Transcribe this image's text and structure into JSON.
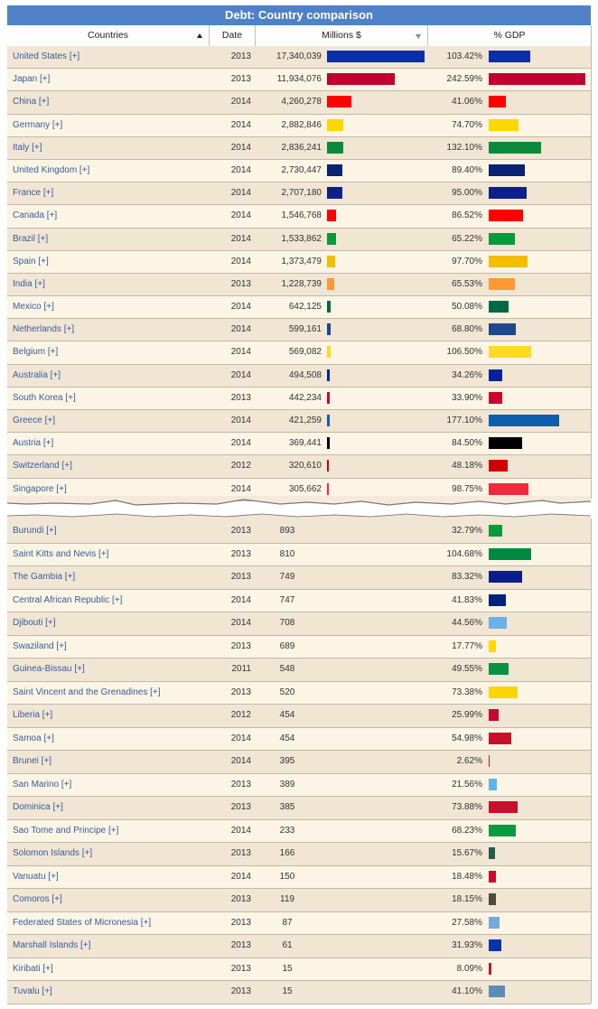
{
  "title": "Debt: Country comparison",
  "columns": {
    "countries": "Countries",
    "date": "Date",
    "millions": "Millions $",
    "gdp": "% GDP"
  },
  "top_rows": [
    {
      "name": "United States [+]",
      "date": "2013",
      "millions": "17,340,039",
      "gdp": "103.42%",
      "mil_w": 108,
      "gdp_w": 46,
      "color": "#0a2fa8"
    },
    {
      "name": "Japan [+]",
      "date": "2013",
      "millions": "11,934,076",
      "gdp": "242.59%",
      "mil_w": 75,
      "gdp_w": 107,
      "color": "#c0002f"
    },
    {
      "name": "China [+]",
      "date": "2014",
      "millions": "4,260,278",
      "gdp": "41.06%",
      "mil_w": 27,
      "gdp_w": 19,
      "color": "#ff0000"
    },
    {
      "name": "Germany [+]",
      "date": "2014",
      "millions": "2,882,846",
      "gdp": "74.70%",
      "mil_w": 18,
      "gdp_w": 33,
      "color": "#ffd700"
    },
    {
      "name": "Italy [+]",
      "date": "2014",
      "millions": "2,836,241",
      "gdp": "132.10%",
      "mil_w": 18,
      "gdp_w": 58,
      "color": "#0b8a3c"
    },
    {
      "name": "United Kingdom [+]",
      "date": "2014",
      "millions": "2,730,447",
      "gdp": "89.40%",
      "mil_w": 17,
      "gdp_w": 40,
      "color": "#0a2273"
    },
    {
      "name": "France [+]",
      "date": "2014",
      "millions": "2,707,180",
      "gdp": "95.00%",
      "mil_w": 17,
      "gdp_w": 42,
      "color": "#0d1f8c"
    },
    {
      "name": "Canada [+]",
      "date": "2014",
      "millions": "1,546,768",
      "gdp": "86.52%",
      "mil_w": 10,
      "gdp_w": 38,
      "color": "#ff0000"
    },
    {
      "name": "Brazil [+]",
      "date": "2014",
      "millions": "1,533,862",
      "gdp": "65.22%",
      "mil_w": 10,
      "gdp_w": 29,
      "color": "#089a3b"
    },
    {
      "name": "Spain [+]",
      "date": "2014",
      "millions": "1,373,479",
      "gdp": "97.70%",
      "mil_w": 9,
      "gdp_w": 43,
      "color": "#f4bd00"
    },
    {
      "name": "India [+]",
      "date": "2013",
      "millions": "1,228,739",
      "gdp": "65.53%",
      "mil_w": 8,
      "gdp_w": 29,
      "color": "#ff9933"
    },
    {
      "name": "Mexico [+]",
      "date": "2014",
      "millions": "642,125",
      "gdp": "50.08%",
      "mil_w": 4,
      "gdp_w": 22,
      "color": "#006847"
    },
    {
      "name": "Netherlands [+]",
      "date": "2014",
      "millions": "599,161",
      "gdp": "68.80%",
      "mil_w": 4,
      "gdp_w": 30,
      "color": "#21468b"
    },
    {
      "name": "Belgium [+]",
      "date": "2014",
      "millions": "569,082",
      "gdp": "106.50%",
      "mil_w": 4,
      "gdp_w": 47,
      "color": "#fdda24"
    },
    {
      "name": "Australia [+]",
      "date": "2014",
      "millions": "494,508",
      "gdp": "34.26%",
      "mil_w": 3,
      "gdp_w": 15,
      "color": "#00239c"
    },
    {
      "name": "South Korea [+]",
      "date": "2013",
      "millions": "442,234",
      "gdp": "33.90%",
      "mil_w": 3,
      "gdp_w": 15,
      "color": "#cd0031"
    },
    {
      "name": "Greece [+]",
      "date": "2014",
      "millions": "421,259",
      "gdp": "177.10%",
      "mil_w": 3,
      "gdp_w": 78,
      "color": "#0d5eaf"
    },
    {
      "name": "Austria [+]",
      "date": "2014",
      "millions": "369,441",
      "gdp": "84.50%",
      "mil_w": 3,
      "gdp_w": 37,
      "color": "#000000"
    },
    {
      "name": "Switzerland [+]",
      "date": "2012",
      "millions": "320,610",
      "gdp": "48.18%",
      "mil_w": 2,
      "gdp_w": 21,
      "color": "#d00000"
    },
    {
      "name": "Singapore [+]",
      "date": "2014",
      "millions": "305,662",
      "gdp": "98.75%",
      "mil_w": 2,
      "gdp_w": 44,
      "color": "#ef2b3b"
    }
  ],
  "bottom_rows": [
    {
      "name": "Burundi [+]",
      "date": "2013",
      "millions": "893",
      "gdp": "32.79%",
      "gdp_w": 15,
      "color": "#089a3b"
    },
    {
      "name": "Saint Kitts and Nevis [+]",
      "date": "2013",
      "millions": "810",
      "gdp": "104.68%",
      "gdp_w": 47,
      "color": "#008a40"
    },
    {
      "name": "The Gambia [+]",
      "date": "2013",
      "millions": "749",
      "gdp": "83.32%",
      "gdp_w": 37,
      "color": "#0b1c8c"
    },
    {
      "name": "Central African Republic [+]",
      "date": "2014",
      "millions": "747",
      "gdp": "41.83%",
      "gdp_w": 19,
      "color": "#002379"
    },
    {
      "name": "Djibouti [+]",
      "date": "2014",
      "millions": "708",
      "gdp": "44.56%",
      "gdp_w": 20,
      "color": "#6ab2e7"
    },
    {
      "name": "Swaziland [+]",
      "date": "2013",
      "millions": "689",
      "gdp": "17.77%",
      "gdp_w": 8,
      "color": "#ffd900"
    },
    {
      "name": "Guinea-Bissau [+]",
      "date": "2011",
      "millions": "548",
      "gdp": "49.55%",
      "gdp_w": 22,
      "color": "#079140"
    },
    {
      "name": "Saint Vincent and the Grenadines [+]",
      "date": "2013",
      "millions": "520",
      "gdp": "73.38%",
      "gdp_w": 32,
      "color": "#fcd400"
    },
    {
      "name": "Liberia [+]",
      "date": "2012",
      "millions": "454",
      "gdp": "25.99%",
      "gdp_w": 11,
      "color": "#c6092f"
    },
    {
      "name": "Samoa [+]",
      "date": "2014",
      "millions": "454",
      "gdp": "54.98%",
      "gdp_w": 25,
      "color": "#c8102e"
    },
    {
      "name": "Brunei [+]",
      "date": "2014",
      "millions": "395",
      "gdp": "2.62%",
      "gdp_w": 1,
      "color": "#cf1126"
    },
    {
      "name": "San Marino [+]",
      "date": "2013",
      "millions": "389",
      "gdp": "21.56%",
      "gdp_w": 9,
      "color": "#5eb6e4"
    },
    {
      "name": "Dominica [+]",
      "date": "2013",
      "millions": "385",
      "gdp": "73.88%",
      "gdp_w": 32,
      "color": "#c8102e"
    },
    {
      "name": "Sao Tome and Principe [+]",
      "date": "2014",
      "millions": "233",
      "gdp": "68.23%",
      "gdp_w": 30,
      "color": "#0b9a3f"
    },
    {
      "name": "Solomon Islands [+]",
      "date": "2013",
      "millions": "166",
      "gdp": "15.67%",
      "gdp_w": 7,
      "color": "#275a4b"
    },
    {
      "name": "Vanuatu [+]",
      "date": "2014",
      "millions": "150",
      "gdp": "18.48%",
      "gdp_w": 8,
      "color": "#cf0a2c"
    },
    {
      "name": "Comoros [+]",
      "date": "2013",
      "millions": "119",
      "gdp": "18.15%",
      "gdp_w": 8,
      "color": "#4d4d3c"
    },
    {
      "name": "Federated States of Micronesia [+]",
      "date": "2013",
      "millions": "87",
      "gdp": "27.58%",
      "gdp_w": 12,
      "color": "#75aadb"
    },
    {
      "name": "Marshall Islands [+]",
      "date": "2013",
      "millions": "61",
      "gdp": "31.93%",
      "gdp_w": 14,
      "color": "#0a34a6"
    },
    {
      "name": "Kiribati [+]",
      "date": "2013",
      "millions": "15",
      "gdp": "8.09%",
      "gdp_w": 3,
      "color": "#ce1126"
    },
    {
      "name": "Tuvalu [+]",
      "date": "2013",
      "millions": "15",
      "gdp": "41.10%",
      "gdp_w": 18,
      "color": "#5b8db5"
    }
  ]
}
